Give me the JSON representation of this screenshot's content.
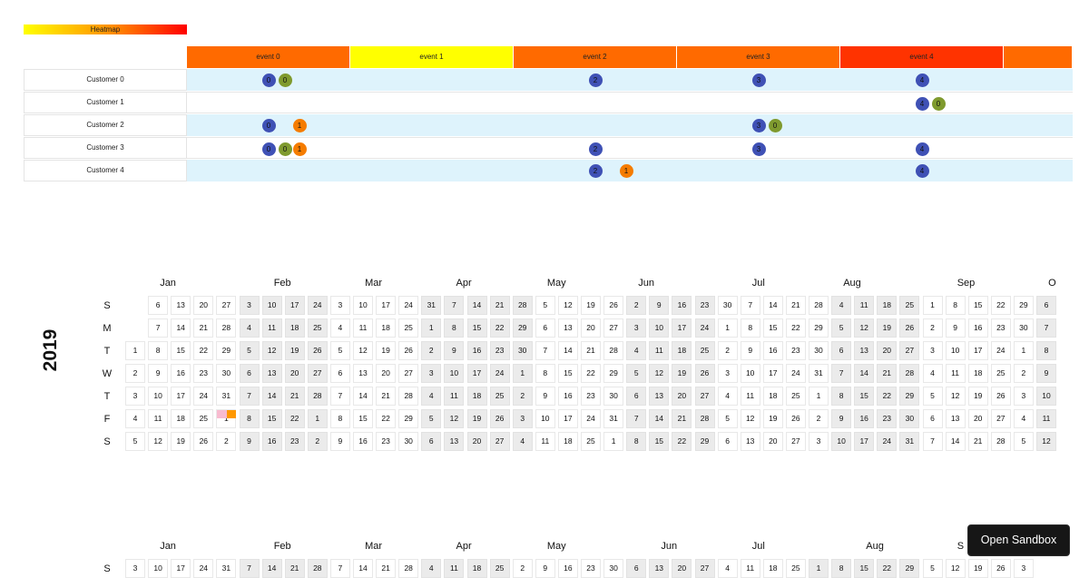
{
  "legend": {
    "label": "Heatmap"
  },
  "timeline": {
    "events": [
      {
        "label": "event 0",
        "color": "#ff6a00"
      },
      {
        "label": "event 1",
        "color": "#ffff00"
      },
      {
        "label": "event 2",
        "color": "#ff6a00"
      },
      {
        "label": "event 3",
        "color": "#ff6a00"
      },
      {
        "label": "event 4",
        "color": "#ff3300"
      },
      {
        "label": "",
        "color": "#ff6a00"
      }
    ],
    "customers": [
      {
        "label": "Customer 0",
        "markers": [
          {
            "text": "0",
            "ev": 0,
            "k": 0
          },
          {
            "text": "0",
            "ev": 0,
            "k": 1
          },
          {
            "text": "2",
            "ev": 2,
            "k": 0
          },
          {
            "text": "3",
            "ev": 3,
            "k": 0
          },
          {
            "text": "4",
            "ev": 4,
            "k": 0
          }
        ]
      },
      {
        "label": "Customer 1",
        "markers": [
          {
            "text": "4",
            "ev": 4,
            "k": 0
          },
          {
            "text": "0",
            "ev": 4,
            "k": 1
          }
        ]
      },
      {
        "label": "Customer 2",
        "markers": [
          {
            "text": "0",
            "ev": 0,
            "k": 0
          },
          {
            "text": "1",
            "ev": 0,
            "k": 2
          },
          {
            "text": "3",
            "ev": 3,
            "k": 0
          },
          {
            "text": "0",
            "ev": 3,
            "k": 1
          }
        ]
      },
      {
        "label": "Customer 3",
        "markers": [
          {
            "text": "0",
            "ev": 0,
            "k": 0
          },
          {
            "text": "0",
            "ev": 0,
            "k": 1
          },
          {
            "text": "1",
            "ev": 0,
            "k": 2
          },
          {
            "text": "2",
            "ev": 2,
            "k": 0
          },
          {
            "text": "3",
            "ev": 3,
            "k": 0
          },
          {
            "text": "4",
            "ev": 4,
            "k": 0
          }
        ]
      },
      {
        "label": "Customer 4",
        "markers": [
          {
            "text": "2",
            "ev": 2,
            "k": 0
          },
          {
            "text": "1",
            "ev": 2,
            "k": 3
          },
          {
            "text": "4",
            "ev": 4,
            "k": 0
          }
        ]
      }
    ],
    "marker_colors": {
      "blue": "#3f51b5",
      "olive": "#7f9a2e",
      "orange": "#f57c00"
    }
  },
  "calendar1": {
    "year": "2019",
    "weekdays": [
      "S",
      "M",
      "T",
      "W",
      "T",
      "F",
      "S"
    ],
    "months": [
      "Jan",
      "Feb",
      "Mar",
      "Apr",
      "May",
      "Jun",
      "Jul",
      "Aug",
      "Sep",
      "O"
    ],
    "rows": [
      [
        "",
        "6",
        "13",
        "20",
        "27",
        "3",
        "10",
        "17",
        "24",
        "3",
        "10",
        "17",
        "24",
        "31",
        "7",
        "14",
        "21",
        "28",
        "5",
        "12",
        "19",
        "26",
        "2",
        "9",
        "16",
        "23",
        "30",
        "7",
        "14",
        "21",
        "28",
        "4",
        "11",
        "18",
        "25",
        "1",
        "8",
        "15",
        "22",
        "29",
        "6"
      ],
      [
        "",
        "7",
        "14",
        "21",
        "28",
        "4",
        "11",
        "18",
        "25",
        "4",
        "11",
        "18",
        "25",
        "1",
        "8",
        "15",
        "22",
        "29",
        "6",
        "13",
        "20",
        "27",
        "3",
        "10",
        "17",
        "24",
        "1",
        "8",
        "15",
        "22",
        "29",
        "5",
        "12",
        "19",
        "26",
        "2",
        "9",
        "16",
        "23",
        "30",
        "7"
      ],
      [
        "1",
        "8",
        "15",
        "22",
        "29",
        "5",
        "12",
        "19",
        "26",
        "5",
        "12",
        "19",
        "26",
        "2",
        "9",
        "16",
        "23",
        "30",
        "7",
        "14",
        "21",
        "28",
        "4",
        "11",
        "18",
        "25",
        "2",
        "9",
        "16",
        "23",
        "30",
        "6",
        "13",
        "20",
        "27",
        "3",
        "10",
        "17",
        "24",
        "1",
        "8"
      ],
      [
        "2",
        "9",
        "16",
        "23",
        "30",
        "6",
        "13",
        "20",
        "27",
        "6",
        "13",
        "20",
        "27",
        "3",
        "10",
        "17",
        "24",
        "1",
        "8",
        "15",
        "22",
        "29",
        "5",
        "12",
        "19",
        "26",
        "3",
        "10",
        "17",
        "24",
        "31",
        "7",
        "14",
        "21",
        "28",
        "4",
        "11",
        "18",
        "25",
        "2",
        "9"
      ],
      [
        "3",
        "10",
        "17",
        "24",
        "31",
        "7",
        "14",
        "21",
        "28",
        "7",
        "14",
        "21",
        "28",
        "4",
        "11",
        "18",
        "25",
        "2",
        "9",
        "16",
        "23",
        "30",
        "6",
        "13",
        "20",
        "27",
        "4",
        "11",
        "18",
        "25",
        "1",
        "8",
        "15",
        "22",
        "29",
        "5",
        "12",
        "19",
        "26",
        "3",
        "10"
      ],
      [
        "4",
        "11",
        "18",
        "25",
        "1",
        "8",
        "15",
        "22",
        "1",
        "8",
        "15",
        "22",
        "29",
        "5",
        "12",
        "19",
        "26",
        "3",
        "10",
        "17",
        "24",
        "31",
        "7",
        "14",
        "21",
        "28",
        "5",
        "12",
        "19",
        "26",
        "2",
        "9",
        "16",
        "23",
        "30",
        "6",
        "13",
        "20",
        "27",
        "4",
        "11"
      ],
      [
        "5",
        "12",
        "19",
        "26",
        "2",
        "9",
        "16",
        "23",
        "2",
        "9",
        "16",
        "23",
        "30",
        "6",
        "13",
        "20",
        "27",
        "4",
        "11",
        "18",
        "25",
        "1",
        "8",
        "15",
        "22",
        "29",
        "6",
        "13",
        "20",
        "27",
        "3",
        "10",
        "17",
        "24",
        "31",
        "7",
        "14",
        "21",
        "28",
        "5",
        "12"
      ]
    ],
    "highlight_colors": {
      "pink": "#f8bbd0",
      "orange": "#ff9800"
    }
  },
  "calendar2": {
    "weekdays": [
      "S"
    ],
    "months": [
      "Jan",
      "Feb",
      "Mar",
      "Apr",
      "May",
      "Jun",
      "Jul",
      "Aug",
      "S"
    ],
    "rows": [
      [
        "3",
        "10",
        "17",
        "24",
        "31",
        "7",
        "14",
        "21",
        "28",
        "7",
        "14",
        "21",
        "28",
        "4",
        "11",
        "18",
        "25",
        "2",
        "9",
        "16",
        "23",
        "30",
        "6",
        "13",
        "20",
        "27",
        "4",
        "11",
        "18",
        "25",
        "1",
        "8",
        "15",
        "22",
        "29",
        "5",
        "12",
        "19",
        "26",
        "3"
      ]
    ]
  },
  "sandbox_button": {
    "label": "Open Sandbox"
  }
}
